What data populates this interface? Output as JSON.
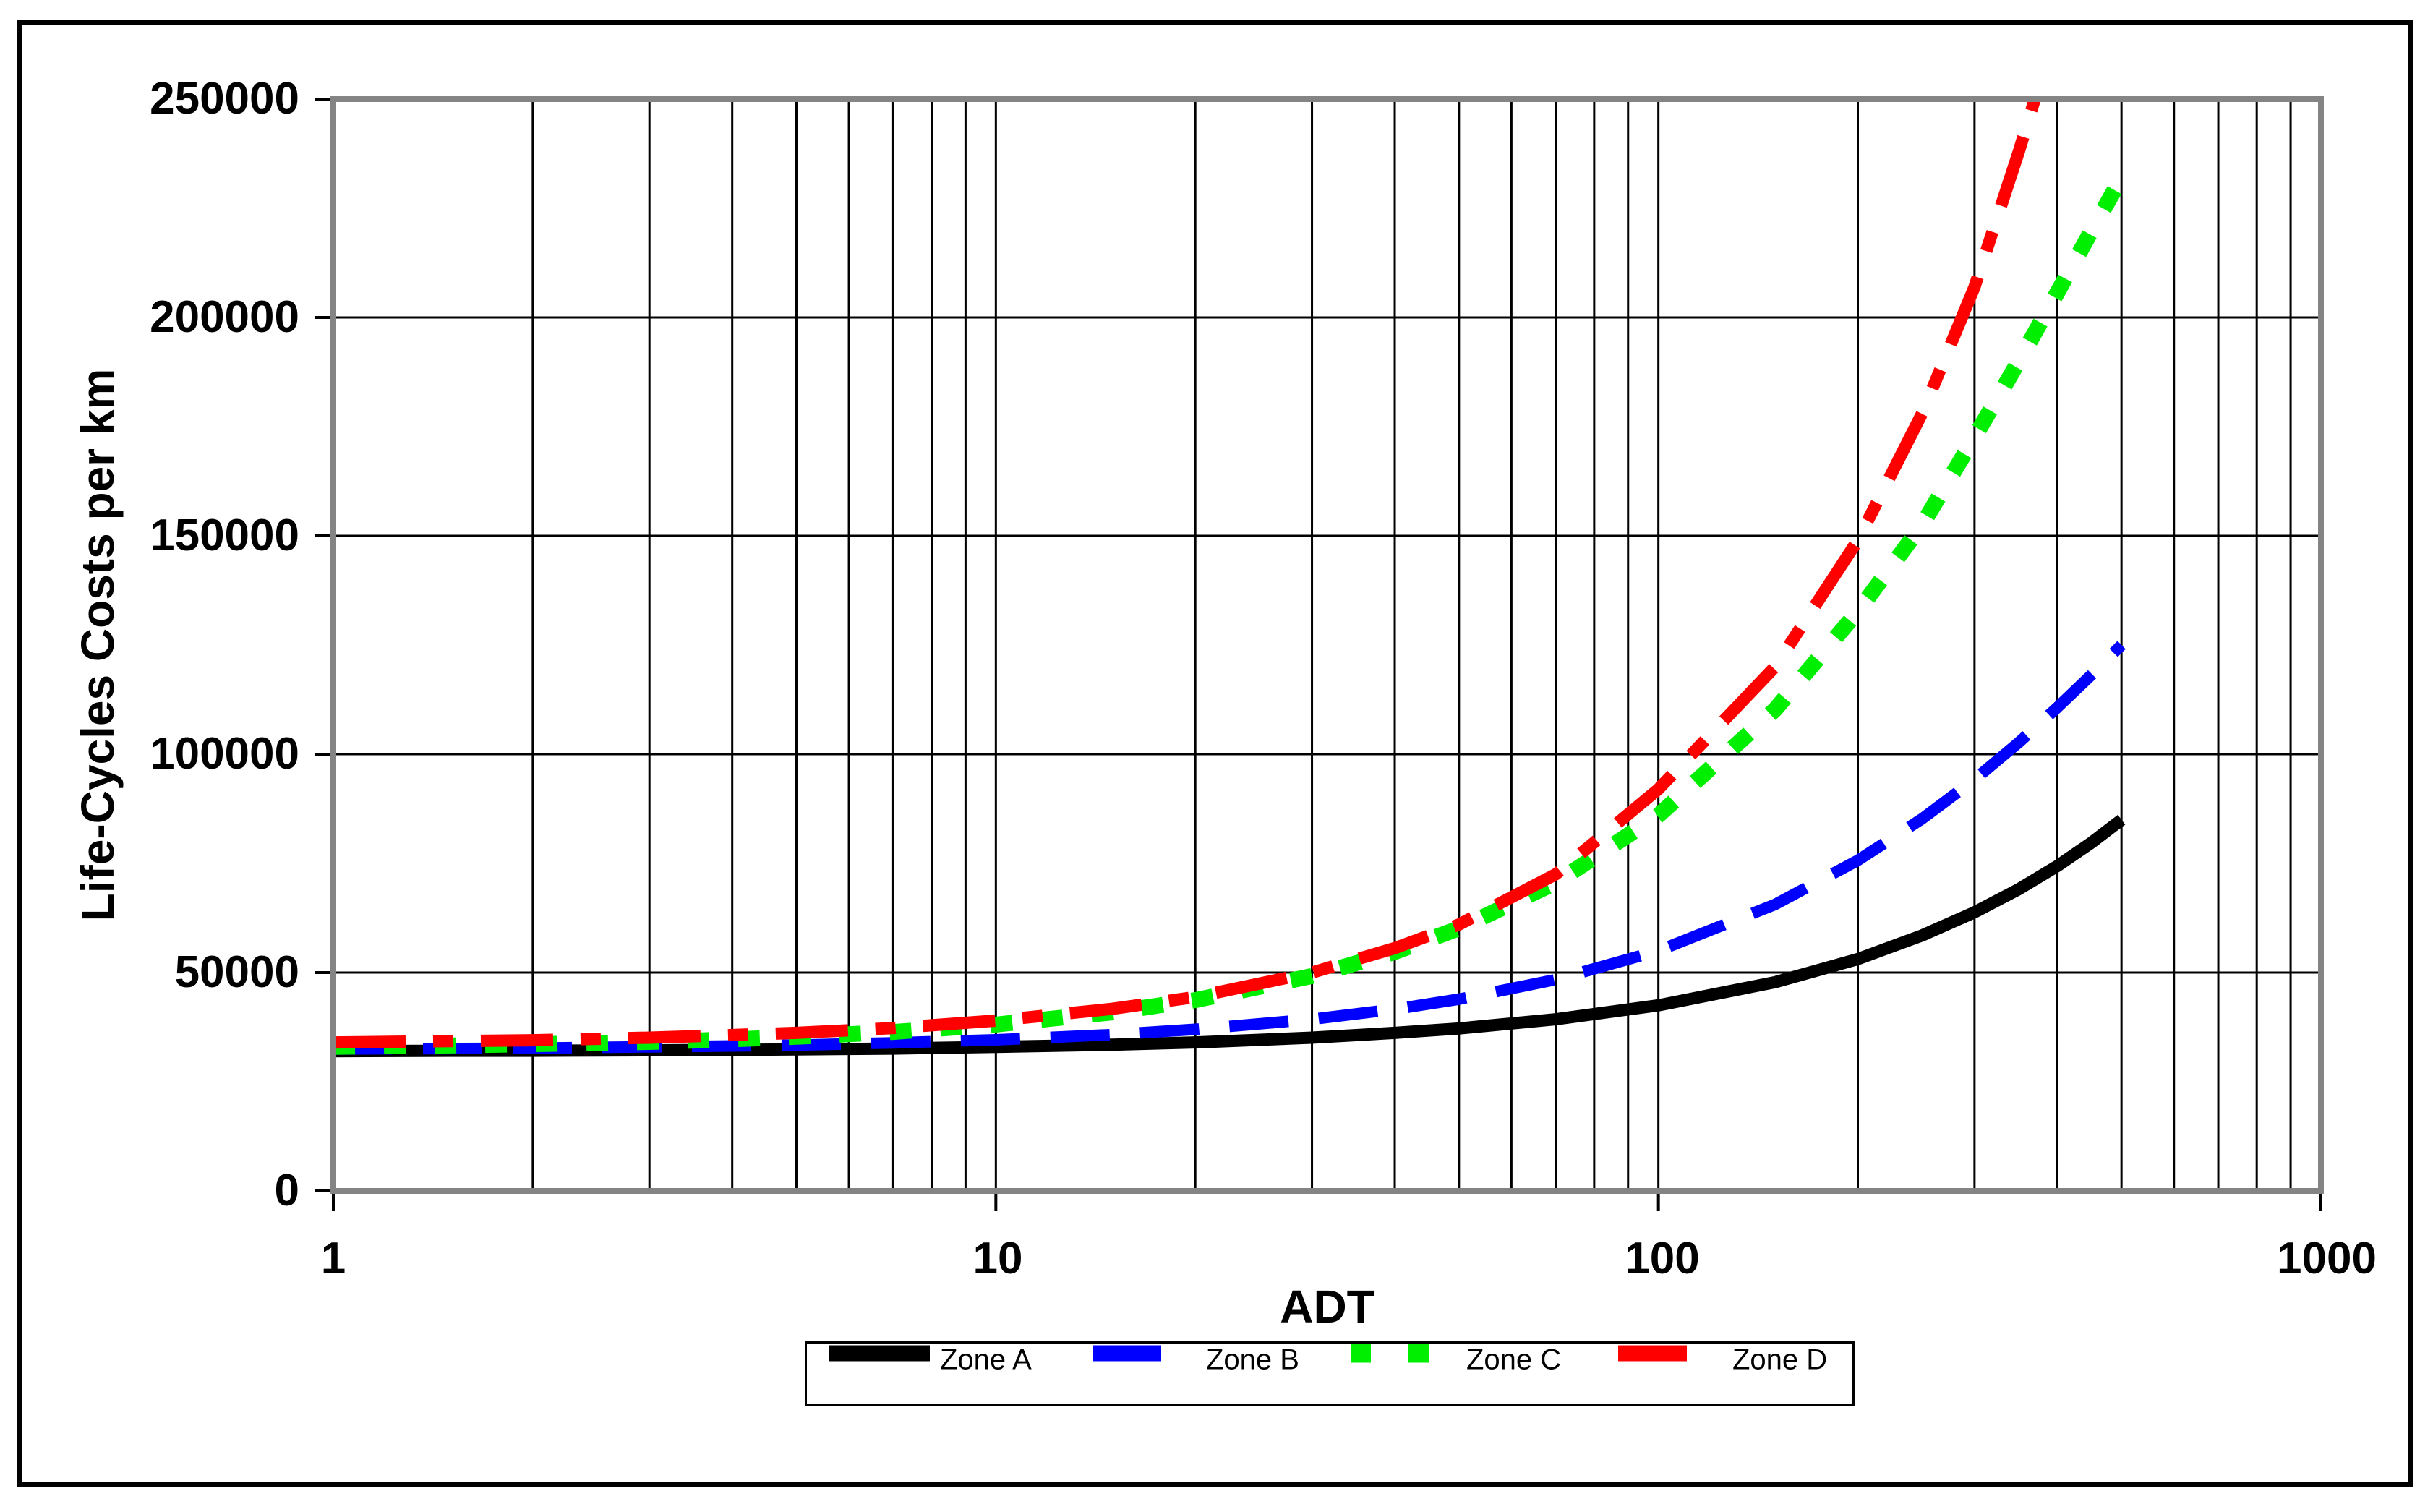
{
  "chart_data": {
    "type": "line",
    "title": "",
    "xlabel": "ADT",
    "ylabel": "Life-Cycles Costs per km",
    "x_scale": "log",
    "xlim": [
      1,
      1000
    ],
    "ylim": [
      0,
      250000
    ],
    "grid": "log minor vertical gridlines; horizontal gridlines every 50000",
    "legend_position": "bottom-center",
    "x_tick_values": [
      1,
      10,
      100,
      1000
    ],
    "x_tick_labels": [
      "1",
      "10",
      "100",
      "1000"
    ],
    "y_tick_values": [
      0,
      50000,
      100000,
      150000,
      200000,
      250000
    ],
    "y_tick_labels": [
      "0",
      "50000",
      "100000",
      "150000",
      "200000",
      "250000"
    ],
    "series": [
      {
        "name": "Zone A",
        "color": "#000000",
        "dash": "solid",
        "points": [
          [
            1,
            32000
          ],
          [
            1.5,
            32100
          ],
          [
            2,
            32100
          ],
          [
            3,
            32200
          ],
          [
            4,
            32300
          ],
          [
            5,
            32400
          ],
          [
            7,
            32600
          ],
          [
            10,
            33000
          ],
          [
            15,
            33500
          ],
          [
            20,
            34000
          ],
          [
            30,
            35100
          ],
          [
            40,
            36200
          ],
          [
            50,
            37200
          ],
          [
            70,
            39300
          ],
          [
            100,
            42500
          ],
          [
            150,
            47800
          ],
          [
            200,
            53100
          ],
          [
            250,
            58500
          ],
          [
            300,
            63800
          ],
          [
            350,
            69100
          ],
          [
            400,
            74400
          ],
          [
            450,
            79700
          ],
          [
            500,
            85000
          ]
        ]
      },
      {
        "name": "Zone B",
        "color": "#0000ff",
        "dash": "long-dash",
        "points": [
          [
            1,
            32500
          ],
          [
            1.5,
            32600
          ],
          [
            2,
            32700
          ],
          [
            3,
            33000
          ],
          [
            4,
            33200
          ],
          [
            5,
            33400
          ],
          [
            7,
            33900
          ],
          [
            10,
            34600
          ],
          [
            15,
            35800
          ],
          [
            20,
            37000
          ],
          [
            30,
            39300
          ],
          [
            40,
            41600
          ],
          [
            50,
            43900
          ],
          [
            70,
            48400
          ],
          [
            100,
            55000
          ],
          [
            150,
            65600
          ],
          [
            200,
            75700
          ],
          [
            250,
            85200
          ],
          [
            300,
            94200
          ],
          [
            350,
            102700
          ],
          [
            400,
            110700
          ],
          [
            450,
            118100
          ],
          [
            500,
            125000
          ]
        ]
      },
      {
        "name": "Zone C",
        "color": "#00ee00",
        "dash": "square-dot",
        "points": [
          [
            1,
            33000
          ],
          [
            1.5,
            33300
          ],
          [
            2,
            33600
          ],
          [
            3,
            34100
          ],
          [
            4,
            34700
          ],
          [
            5,
            35300
          ],
          [
            7,
            36400
          ],
          [
            10,
            38100
          ],
          [
            15,
            40900
          ],
          [
            20,
            43700
          ],
          [
            30,
            49200
          ],
          [
            40,
            54700
          ],
          [
            50,
            60100
          ],
          [
            70,
            70600
          ],
          [
            100,
            86000
          ],
          [
            150,
            110200
          ],
          [
            200,
            132700
          ],
          [
            250,
            152500
          ],
          [
            300,
            172600
          ],
          [
            350,
            190000
          ],
          [
            400,
            205700
          ],
          [
            450,
            219700
          ],
          [
            500,
            232000
          ]
        ]
      },
      {
        "name": "Zone D",
        "color": "#ff0000",
        "dash": "dash-dot",
        "points": [
          [
            1,
            34000
          ],
          [
            1.5,
            34300
          ],
          [
            2,
            34500
          ],
          [
            3,
            35100
          ],
          [
            4,
            35700
          ],
          [
            5,
            36200
          ],
          [
            7,
            37300
          ],
          [
            10,
            39000
          ],
          [
            15,
            41700
          ],
          [
            20,
            44400
          ],
          [
            30,
            50000
          ],
          [
            40,
            55600
          ],
          [
            50,
            61000
          ],
          [
            70,
            72500
          ],
          [
            100,
            92000
          ],
          [
            150,
            120000
          ],
          [
            200,
            149000
          ],
          [
            250,
            178000
          ],
          [
            300,
            207000
          ],
          [
            350,
            238000
          ],
          [
            370,
            250000
          ]
        ]
      }
    ]
  }
}
